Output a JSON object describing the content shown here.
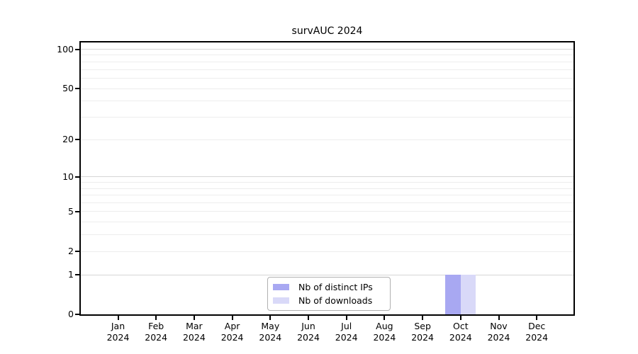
{
  "chart_data": {
    "type": "bar",
    "title": "survAUC 2024",
    "categories": [
      "Jan 2024",
      "Feb 2024",
      "Mar 2024",
      "Apr 2024",
      "May 2024",
      "Jun 2024",
      "Jul 2024",
      "Aug 2024",
      "Sep 2024",
      "Oct 2024",
      "Nov 2024",
      "Dec 2024"
    ],
    "series": [
      {
        "name": "Nb of distinct IPs",
        "color": "#a8a8f2",
        "values": [
          0,
          0,
          0,
          0,
          0,
          0,
          0,
          0,
          0,
          1,
          0,
          0
        ]
      },
      {
        "name": "Nb of downloads",
        "color": "#d9d9f8",
        "values": [
          0,
          0,
          0,
          0,
          0,
          0,
          0,
          0,
          0,
          1,
          0,
          0
        ]
      }
    ],
    "y_axis": {
      "scale": "log1p",
      "tick_values": [
        0,
        1,
        2,
        5,
        10,
        20,
        50,
        100
      ],
      "minor_gridlines": [
        2,
        3,
        4,
        5,
        6,
        7,
        8,
        9,
        20,
        30,
        40,
        50,
        60,
        70,
        80,
        90
      ],
      "major_gridlines": [
        1,
        10,
        100
      ],
      "range": [
        0,
        113
      ]
    },
    "x_axis": {
      "year_line": "2024"
    },
    "legend_position": "bottom-center-inside",
    "grid": "horizontal",
    "style": {
      "grid_minor_color": "#ededed",
      "grid_major_color": "#d6d6d6",
      "axis_color": "#000000",
      "legend_border_color": "#b0b0b0",
      "background": "#ffffff"
    }
  }
}
